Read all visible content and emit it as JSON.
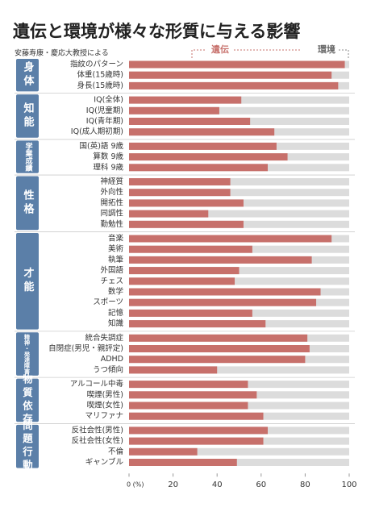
{
  "chart_data": {
    "type": "bar",
    "title": "遺伝と環境が様々な形質に与える影響",
    "subtitle": "安藤寿康・慶応大教授による",
    "series": [
      {
        "name": "遺伝",
        "color": "#c7706b"
      },
      {
        "name": "環境",
        "color": "#dcdcdc"
      }
    ],
    "xlim": [
      0,
      100
    ],
    "xticks": [
      {
        "value": 0,
        "label": "0 (%)"
      },
      20,
      40,
      60,
      80,
      100
    ],
    "groups": [
      {
        "name": "身体",
        "categories": [
          "指紋のパターン",
          "体重(15歳時)",
          "身長(15歳時)"
        ],
        "values": [
          98,
          92,
          95
        ]
      },
      {
        "name": "知能",
        "categories": [
          "IQ(全体)",
          "IQ(児童期)",
          "IQ(青年期)",
          "IQ(成人期初期)"
        ],
        "values": [
          51,
          41,
          55,
          66
        ]
      },
      {
        "name": "学業成績",
        "categories": [
          "国(英)語 9歳",
          "算数 9歳",
          "理科 9歳"
        ],
        "values": [
          67,
          72,
          63
        ]
      },
      {
        "name": "性格",
        "categories": [
          "神経質",
          "外向性",
          "開拓性",
          "同調性",
          "勤勉性"
        ],
        "values": [
          46,
          46,
          52,
          36,
          52
        ]
      },
      {
        "name": "才能",
        "categories": [
          "音楽",
          "美術",
          "執筆",
          "外国語",
          "チェス",
          "数学",
          "スポーツ",
          "記憶",
          "知識"
        ],
        "values": [
          92,
          56,
          83,
          50,
          48,
          87,
          85,
          56,
          62
        ]
      },
      {
        "name": "精神・発達障害",
        "categories": [
          "統合失調症",
          "自閉症(男児・親評定)",
          "ADHD",
          "うつ傾向"
        ],
        "values": [
          81,
          82,
          80,
          40
        ]
      },
      {
        "name": "物質依存",
        "categories": [
          "アルコール中毒",
          "喫煙(男性)",
          "喫煙(女性)",
          "マリファナ"
        ],
        "values": [
          54,
          58,
          54,
          61
        ]
      },
      {
        "name": "問題行動",
        "categories": [
          "反社会性(男性)",
          "反社会性(女性)",
          "不倫",
          "ギャンブル"
        ],
        "values": [
          63,
          61,
          31,
          49
        ]
      }
    ]
  }
}
